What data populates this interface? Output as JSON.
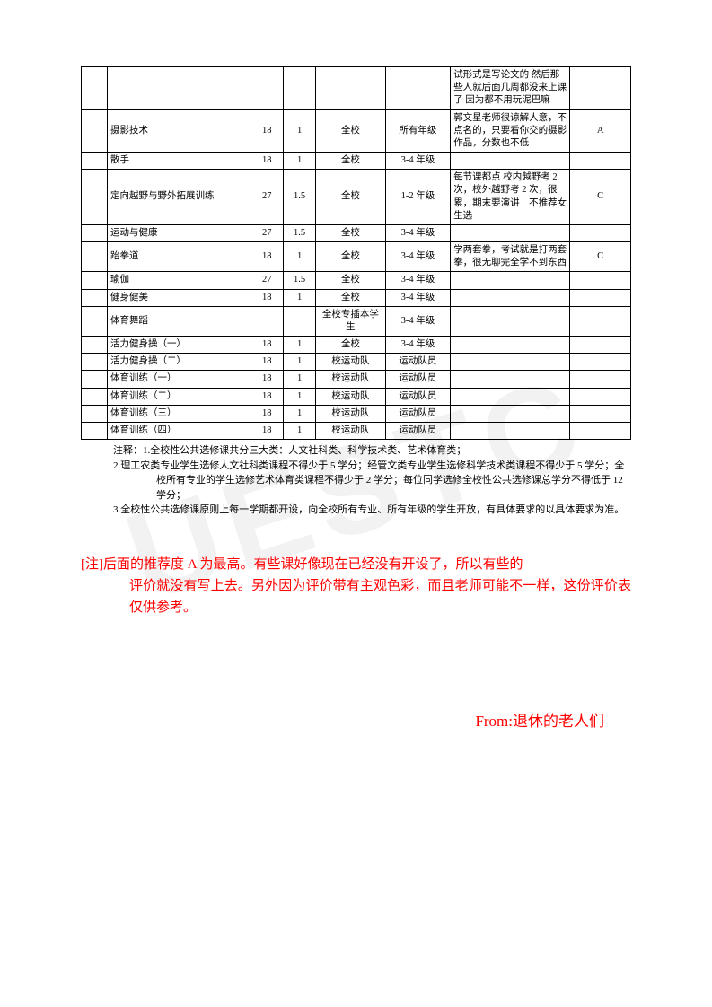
{
  "watermark": "UESTC",
  "table": {
    "columns_widths": [
      "24",
      "132",
      "30",
      "30",
      "64",
      "60",
      "110",
      "56"
    ],
    "rows": [
      {
        "c0": "",
        "c1": "",
        "c2": "",
        "c3": "",
        "c4": "",
        "c5": "",
        "c6": "试形式是写论文的 然后那些人就后面几周都没来上课了 因为都不用玩泥巴嘛",
        "c7": ""
      },
      {
        "c0": "",
        "c1": "摄影技术",
        "c2": "18",
        "c3": "1",
        "c4": "全校",
        "c5": "所有年级",
        "c6": "郭文星老师很谅解人意，不点名的，只要看你交的摄影作品，分数也不低",
        "c7": "A"
      },
      {
        "c0": "",
        "c1": "散手",
        "c2": "18",
        "c3": "1",
        "c4": "全校",
        "c5": "3-4 年级",
        "c6": "",
        "c7": ""
      },
      {
        "c0": "",
        "c1": "定向越野与野外拓展训练",
        "c2": "27",
        "c3": "1.5",
        "c4": "全校",
        "c5": "1-2 年级",
        "c6": "每节课都点 校内越野考 2 次，校外越野考 2 次，很累，期末要演讲　不推荐女生选",
        "c7": "C"
      },
      {
        "c0": "",
        "c1": "运动与健康",
        "c2": "27",
        "c3": "1.5",
        "c4": "全校",
        "c5": "3-4 年级",
        "c6": "",
        "c7": ""
      },
      {
        "c0": "",
        "c1": "跆拳道",
        "c2": "18",
        "c3": "1",
        "c4": "全校",
        "c5": "3-4 年级",
        "c6": "学两套拳，考试就是打两套拳，很无聊完全学不到东西",
        "c7": "C"
      },
      {
        "c0": "",
        "c1": "瑜伽",
        "c2": "27",
        "c3": "1.5",
        "c4": "全校",
        "c5": "3-4 年级",
        "c6": "",
        "c7": ""
      },
      {
        "c0": "",
        "c1": "健身健美",
        "c2": "18",
        "c3": "1",
        "c4": "全校",
        "c5": "3-4 年级",
        "c6": "",
        "c7": ""
      },
      {
        "c0": "",
        "c1": "体育舞蹈",
        "c2": "",
        "c3": "",
        "c4": "全校专插本学生",
        "c5": "3-4 年级",
        "c6": "",
        "c7": ""
      },
      {
        "c0": "",
        "c1": "活力健身操（一）",
        "c2": "18",
        "c3": "1",
        "c4": "全校",
        "c5": "3-4 年级",
        "c6": "",
        "c7": ""
      },
      {
        "c0": "",
        "c1": "活力健身操（二）",
        "c2": "18",
        "c3": "1",
        "c4": "校运动队",
        "c5": "运动队员",
        "c6": "",
        "c7": ""
      },
      {
        "c0": "",
        "c1": "体育训练（一）",
        "c2": "18",
        "c3": "1",
        "c4": "校运动队",
        "c5": "运动队员",
        "c6": "",
        "c7": ""
      },
      {
        "c0": "",
        "c1": "体育训练（二）",
        "c2": "18",
        "c3": "1",
        "c4": "校运动队",
        "c5": "运动队员",
        "c6": "",
        "c7": ""
      },
      {
        "c0": "",
        "c1": "体育训练（三）",
        "c2": "18",
        "c3": "1",
        "c4": "校运动队",
        "c5": "运动队员",
        "c6": "",
        "c7": ""
      },
      {
        "c0": "",
        "c1": "体育训练（四）",
        "c2": "18",
        "c3": "1",
        "c4": "校运动队",
        "c5": "运动队员",
        "c6": "",
        "c7": ""
      }
    ]
  },
  "notes": {
    "prefix": "注释：",
    "items": [
      "1.全校性公共选修课共分三大类：人文社科类、科学技术类、艺术体育类；",
      "2.理工农类专业学生选修人文社科类课程不得少于 5 学分；经管文类专业学生选修科学技术类课程不得少于 5 学分；全校所有专业的学生选修艺术体育类课程不得少于 2 学分；每位同学选修全校性公共选修课总学分不得低于 12 学分；",
      "3.全校性公共选修课原则上每一学期都开设，向全校所有专业、所有年级的学生开放，有具体要求的以具体要求为准。"
    ]
  },
  "red_note": {
    "label": "[注]",
    "text1": "后面的推荐度 A 为最高。有些课好像现在已经没有开设了，所以有些的",
    "text2": "评价就没有写上去。另外因为评价带有主观色彩，而且老师可能不一样，这份评价表仅供参考。"
  },
  "from": "From:退休的老人们"
}
